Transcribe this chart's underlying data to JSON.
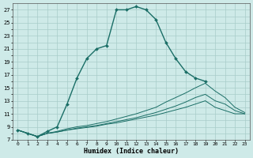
{
  "xlabel": "Humidex (Indice chaleur)",
  "background_color": "#ceeae8",
  "grid_color": "#a8ccc9",
  "line_color": "#1a6e66",
  "xlim": [
    -0.5,
    23.5
  ],
  "ylim": [
    7,
    28
  ],
  "yticks": [
    7,
    8,
    9,
    10,
    11,
    12,
    13,
    14,
    15,
    16,
    17,
    18,
    19,
    20,
    21,
    22,
    23,
    24,
    25,
    26,
    27
  ],
  "ytick_labels": [
    "7",
    "",
    "9",
    "",
    "11",
    "",
    "13",
    "",
    "15",
    "",
    "17",
    "",
    "19",
    "",
    "21",
    "",
    "23",
    "",
    "25",
    "",
    "27"
  ],
  "xticks": [
    0,
    1,
    2,
    3,
    4,
    5,
    6,
    7,
    8,
    9,
    10,
    11,
    12,
    13,
    14,
    15,
    16,
    17,
    18,
    19,
    20,
    21,
    22,
    23
  ],
  "line1_x": [
    0,
    1,
    2,
    3,
    4,
    5,
    6,
    7,
    8,
    9,
    10,
    11,
    12,
    13,
    14,
    15,
    16,
    17,
    18,
    19
  ],
  "line1_y": [
    8.5,
    8.0,
    7.5,
    8.3,
    9.0,
    12.5,
    16.5,
    19.5,
    21.0,
    21.5,
    27.0,
    27.0,
    27.5,
    27.0,
    25.5,
    22.0,
    19.5,
    17.5,
    16.5,
    16.0
  ],
  "line2_x": [
    0,
    1,
    2,
    3,
    4,
    5,
    6,
    7,
    8,
    9,
    10,
    11,
    12,
    13,
    14,
    15,
    16,
    17,
    18,
    19,
    20,
    21,
    22,
    23
  ],
  "line2_y": [
    8.5,
    8.0,
    7.5,
    8.0,
    8.3,
    8.7,
    9.0,
    9.2,
    9.5,
    9.8,
    10.2,
    10.6,
    11.0,
    11.5,
    12.0,
    12.8,
    13.5,
    14.2,
    15.0,
    15.7,
    14.5,
    13.5,
    12.0,
    11.2
  ],
  "line3_x": [
    0,
    1,
    2,
    3,
    4,
    5,
    6,
    7,
    8,
    9,
    10,
    11,
    12,
    13,
    14,
    15,
    16,
    17,
    18,
    19,
    20,
    21,
    22,
    23
  ],
  "line3_y": [
    8.5,
    8.0,
    7.5,
    8.0,
    8.2,
    8.5,
    8.8,
    9.0,
    9.2,
    9.5,
    9.8,
    10.1,
    10.4,
    10.8,
    11.2,
    11.7,
    12.2,
    12.8,
    13.5,
    14.0,
    13.0,
    12.5,
    11.5,
    11.0
  ],
  "line4_x": [
    0,
    1,
    2,
    3,
    4,
    5,
    6,
    7,
    8,
    9,
    10,
    11,
    12,
    13,
    14,
    15,
    16,
    17,
    18,
    19,
    20,
    21,
    22,
    23
  ],
  "line4_y": [
    8.5,
    8.0,
    7.5,
    8.0,
    8.2,
    8.5,
    8.7,
    8.9,
    9.1,
    9.4,
    9.6,
    9.9,
    10.2,
    10.5,
    10.8,
    11.2,
    11.6,
    12.0,
    12.5,
    13.0,
    12.0,
    11.5,
    11.0,
    11.0
  ]
}
